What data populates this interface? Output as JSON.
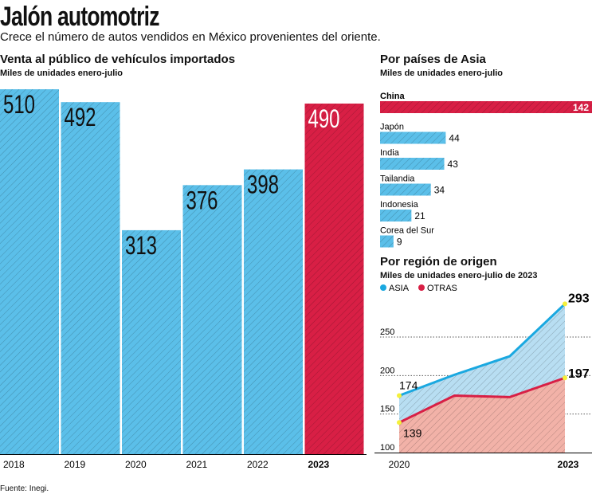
{
  "title": "Jalón automotriz",
  "subtitle": "Crece el número de autos vendidos en México provenientes del oriente.",
  "source": "Fuente: Inegi.",
  "colors": {
    "blue": "#5bbfe9",
    "red": "#d81f45",
    "line_blue": "#1aa8e0",
    "area_red": "#f2b2a8",
    "marker": "#f5f03a"
  },
  "chart_data": [
    {
      "type": "bar",
      "title": "Venta al público de vehículos importados",
      "subtitle": "Miles de unidades enero-julio",
      "categories": [
        "2018",
        "2019",
        "2020",
        "2021",
        "2022",
        "2023"
      ],
      "values": [
        510,
        492,
        313,
        376,
        398,
        490
      ],
      "highlight": "2023"
    },
    {
      "type": "bar",
      "orientation": "horizontal",
      "title": "Por países de Asia",
      "subtitle": "Miles de unidades enero-julio",
      "categories": [
        "China",
        "Japón",
        "India",
        "Tailandia",
        "Indonesia",
        "Corea del Sur"
      ],
      "values": [
        142,
        44,
        43,
        34,
        21,
        9
      ],
      "highlight": "China"
    },
    {
      "type": "area",
      "title": "Por región de origen",
      "subtitle": "Miles de unidades enero-julio de 2023",
      "x": [
        "2020",
        "2021",
        "2022",
        "2023"
      ],
      "x_tick_labels": [
        "2020",
        "2023"
      ],
      "yticks": [
        100,
        150,
        200,
        250
      ],
      "ylim": [
        100,
        300
      ],
      "grid": true,
      "series": [
        {
          "name": "ASIA",
          "values": [
            174,
            201,
            225,
            293
          ],
          "labels": [
            "174",
            "",
            "",
            "293"
          ]
        },
        {
          "name": "OTRAS",
          "values": [
            139,
            174,
            172,
            197
          ],
          "labels": [
            "139",
            "",
            "",
            "197"
          ]
        }
      ]
    }
  ]
}
